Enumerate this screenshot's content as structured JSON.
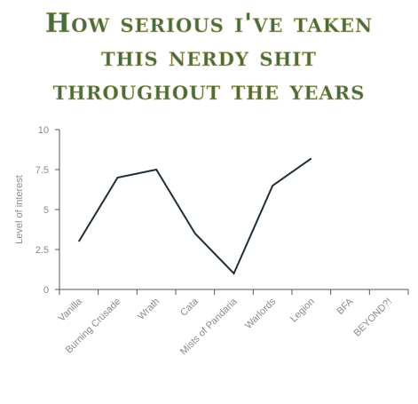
{
  "title_lines": [
    "How serious i've taken",
    "this nerdy shit",
    "throughout the years"
  ],
  "chart_data": {
    "type": "line",
    "categories": [
      "Vanilla",
      "Burning Crusade",
      "Wrath",
      "Cata",
      "Mists of Pandaria",
      "Warlords",
      "Legion",
      "BFA",
      "BEYOND?!"
    ],
    "series": [
      {
        "values": [
          3,
          7,
          7.5,
          3.5,
          1,
          6.5,
          8.2,
          null,
          null
        ]
      }
    ],
    "ylabel": "Level of interest",
    "xlabel": "",
    "ylim": [
      0,
      10
    ],
    "yticks": [
      "0",
      "2.5",
      "5",
      "7.5",
      "10"
    ],
    "grid": false,
    "line_color": "#1f2d3a",
    "axis_color": "#555555"
  }
}
